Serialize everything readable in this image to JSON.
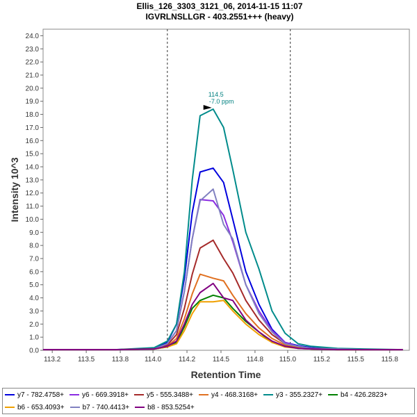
{
  "chart_data": {
    "type": "line",
    "title": "Ellis_126_3303_3121_06, 2014-11-15 11:07",
    "subtitle": "IGVRLNSLLGR - 403.2551+++ (heavy)",
    "xlabel": "Retention Time",
    "ylabel": "Intensity 10^3",
    "xlim": [
      113.15,
      115.95
    ],
    "ylim": [
      0,
      24.5
    ],
    "x_ticks": [
      "113.2",
      "113.5",
      "113.8",
      "114.0",
      "114.2",
      "114.5",
      "114.8",
      "115.0",
      "115.2",
      "115.5",
      "115.8"
    ],
    "x_tick_values": [
      113.22,
      113.48,
      113.74,
      113.99,
      114.25,
      114.51,
      114.77,
      115.02,
      115.28,
      115.54,
      115.8
    ],
    "y_ticks": [
      "0.0",
      "1.0",
      "2.0",
      "3.0",
      "4.0",
      "5.0",
      "6.0",
      "7.0",
      "8.0",
      "9.0",
      "10.0",
      "11.0",
      "12.0",
      "13.0",
      "14.0",
      "15.0",
      "16.0",
      "17.0",
      "18.0",
      "19.0",
      "20.0",
      "21.0",
      "22.0",
      "23.0",
      "24.0"
    ],
    "y_tick_values": [
      0,
      1,
      2,
      3,
      4,
      5,
      6,
      7,
      8,
      9,
      10,
      11,
      12,
      13,
      14,
      15,
      16,
      17,
      18,
      19,
      20,
      21,
      22,
      23,
      24
    ],
    "vlines": [
      114.1,
      115.04
    ],
    "annotation": {
      "x": 114.45,
      "y": 18.4,
      "rt": "114.5",
      "ppm": "-7.0 ppm"
    },
    "x": [
      113.15,
      113.7,
      114.0,
      114.1,
      114.17,
      114.23,
      114.29,
      114.35,
      114.45,
      114.53,
      114.6,
      114.7,
      114.8,
      114.9,
      115.0,
      115.1,
      115.2,
      115.4,
      115.6,
      115.9
    ],
    "series": [
      {
        "name": "y7 - 782.4758+",
        "color": "#0000dd",
        "values": [
          0.05,
          0.05,
          0.15,
          0.6,
          2.0,
          5.5,
          10.5,
          13.6,
          13.9,
          12.8,
          10.0,
          6.0,
          3.5,
          1.6,
          0.6,
          0.35,
          0.2,
          0.1,
          0.05,
          0.05
        ]
      },
      {
        "name": "y6 - 669.3918+",
        "color": "#8a2be2",
        "values": [
          0.05,
          0.05,
          0.1,
          0.5,
          1.5,
          4.5,
          8.5,
          11.5,
          11.4,
          10.3,
          8.3,
          5.0,
          3.0,
          1.5,
          0.6,
          0.3,
          0.15,
          0.1,
          0.05,
          0.05
        ]
      },
      {
        "name": "y5 - 555.3488+",
        "color": "#a52a2a",
        "values": [
          0.05,
          0.05,
          0.1,
          0.4,
          1.2,
          3.2,
          5.8,
          7.8,
          8.4,
          7.0,
          5.9,
          3.8,
          2.3,
          1.2,
          0.5,
          0.25,
          0.15,
          0.1,
          0.05,
          0.05
        ]
      },
      {
        "name": "y4 - 468.3168+",
        "color": "#e07020",
        "values": [
          0.05,
          0.05,
          0.1,
          0.3,
          0.9,
          2.4,
          4.3,
          5.8,
          5.5,
          5.3,
          4.2,
          2.8,
          1.7,
          0.9,
          0.4,
          0.2,
          0.1,
          0.05,
          0.05,
          0.05
        ]
      },
      {
        "name": "y3 - 355.2327+",
        "color": "#008b8b",
        "values": [
          0.05,
          0.05,
          0.2,
          0.7,
          2.0,
          6.0,
          13.0,
          17.9,
          18.4,
          17.0,
          13.8,
          9.0,
          6.2,
          3.0,
          1.3,
          0.5,
          0.3,
          0.15,
          0.1,
          0.05
        ]
      },
      {
        "name": "b4 - 426.2823+",
        "color": "#008000",
        "values": [
          0.05,
          0.05,
          0.1,
          0.25,
          0.6,
          1.8,
          3.2,
          3.8,
          4.2,
          4.0,
          3.2,
          2.2,
          1.4,
          0.6,
          0.3,
          0.15,
          0.1,
          0.05,
          0.05,
          0.05
        ]
      },
      {
        "name": "b6 - 653.4093+",
        "color": "#f0a000",
        "values": [
          0.05,
          0.05,
          0.1,
          0.25,
          0.5,
          1.5,
          2.8,
          3.7,
          3.7,
          3.8,
          3.0,
          2.0,
          1.2,
          0.6,
          0.25,
          0.15,
          0.1,
          0.05,
          0.05,
          0.05
        ]
      },
      {
        "name": "b7 - 740.4413+",
        "color": "#8080c0",
        "values": [
          0.05,
          0.05,
          0.1,
          0.5,
          1.5,
          4.5,
          8.5,
          11.4,
          12.3,
          9.6,
          8.5,
          5.0,
          2.8,
          1.4,
          0.5,
          0.3,
          0.15,
          0.1,
          0.05,
          0.05
        ]
      },
      {
        "name": "b8 - 853.5254+",
        "color": "#800080",
        "values": [
          0.05,
          0.05,
          0.1,
          0.3,
          0.7,
          2.0,
          3.5,
          4.4,
          5.1,
          4.0,
          3.8,
          2.3,
          1.4,
          0.7,
          0.3,
          0.15,
          0.1,
          0.05,
          0.05,
          0.05
        ]
      }
    ]
  },
  "legend": {
    "row1": [
      "y7 - 782.4758+",
      "y6 - 669.3918+",
      "y5 - 555.3488+",
      "y4 - 468.3168+",
      "y3 - 355.2327+",
      "b4 - 426.2823+"
    ],
    "row2": [
      "b6 - 653.4093+",
      "b7 - 740.4413+",
      "b8 - 853.5254+"
    ]
  }
}
